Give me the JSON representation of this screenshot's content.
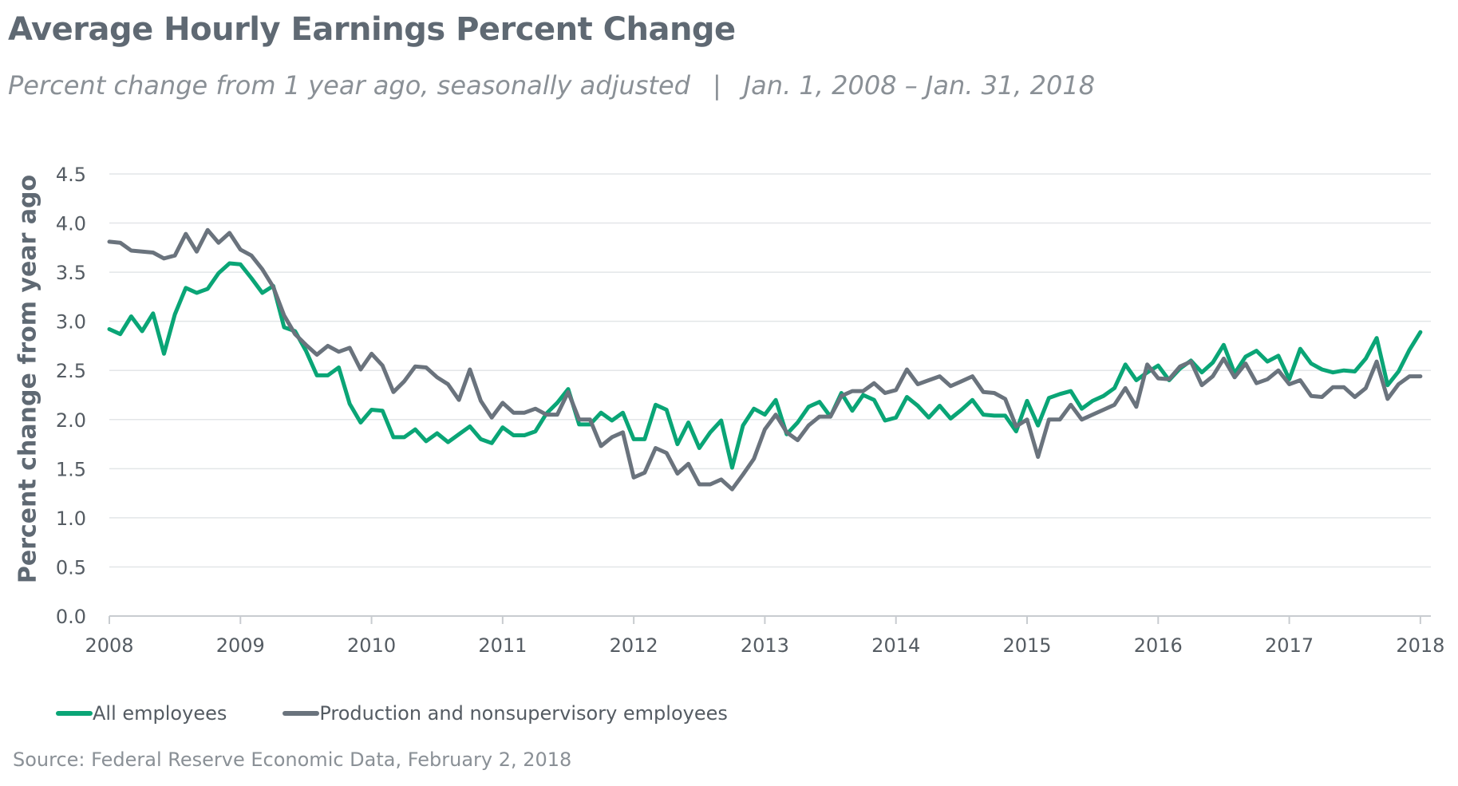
{
  "header": {
    "title": "Average Hourly Earnings Percent Change",
    "subtitle_left": "Percent change from 1 year ago, seasonally adjusted",
    "subtitle_sep": "|",
    "subtitle_right": "Jan. 1, 2008 – Jan. 31, 2018"
  },
  "legend": {
    "items": [
      "All employees",
      "Production and nonsupervisory employees"
    ]
  },
  "footer": {
    "source": "Source: Federal Reserve Economic Data, February 2, 2018"
  },
  "colors": {
    "all": "#0aa576",
    "prod": "#6a737d",
    "grid": "#e3e6e8",
    "axis": "#c8ccd0",
    "text": "#555c63"
  },
  "chart_data": {
    "type": "line",
    "title": "Average Hourly Earnings Percent Change",
    "ylabel": "Percent change from year ago",
    "xlabel": "",
    "ylim": [
      0,
      4.5
    ],
    "xlim": [
      2008,
      2018.08
    ],
    "x_start": 2008,
    "x_step_months": 1,
    "x_ticks": [
      "2008",
      "2009",
      "2010",
      "2011",
      "2012",
      "2013",
      "2014",
      "2015",
      "2016",
      "2017",
      "2018"
    ],
    "y_ticks": [
      "0.0",
      "0.5",
      "1.0",
      "1.5",
      "2.0",
      "2.5",
      "3.0",
      "3.5",
      "4.0",
      "4.5"
    ],
    "grid": true,
    "legend_position": "bottom-left",
    "series": [
      {
        "name": "All employees",
        "key": "all",
        "values": [
          2.92,
          2.87,
          3.05,
          2.9,
          3.08,
          2.67,
          3.07,
          3.34,
          3.29,
          3.33,
          3.49,
          3.59,
          3.58,
          3.44,
          3.29,
          3.36,
          2.94,
          2.9,
          2.7,
          2.45,
          2.45,
          2.53,
          2.16,
          1.97,
          2.1,
          2.09,
          1.82,
          1.82,
          1.9,
          1.78,
          1.86,
          1.77,
          1.85,
          1.93,
          1.8,
          1.76,
          1.92,
          1.84,
          1.84,
          1.88,
          2.06,
          2.17,
          2.31,
          1.95,
          1.95,
          2.07,
          1.99,
          2.07,
          1.8,
          1.8,
          2.15,
          2.1,
          1.75,
          1.97,
          1.71,
          1.87,
          1.99,
          1.51,
          1.94,
          2.11,
          2.05,
          2.2,
          1.85,
          1.97,
          2.13,
          2.18,
          2.03,
          2.27,
          2.09,
          2.25,
          2.2,
          1.99,
          2.02,
          2.23,
          2.14,
          2.02,
          2.14,
          2.01,
          2.1,
          2.2,
          2.05,
          2.04,
          2.04,
          1.88,
          2.19,
          1.94,
          2.22,
          2.26,
          2.29,
          2.11,
          2.19,
          2.24,
          2.32,
          2.56,
          2.4,
          2.48,
          2.55,
          2.4,
          2.52,
          2.6,
          2.48,
          2.58,
          2.76,
          2.47,
          2.64,
          2.7,
          2.59,
          2.65,
          2.41,
          2.72,
          2.57,
          2.51,
          2.48,
          2.5,
          2.49,
          2.62,
          2.83,
          2.35,
          2.49,
          2.71,
          2.89
        ]
      },
      {
        "name": "Production and nonsupervisory employees",
        "key": "prod",
        "values": [
          3.81,
          3.8,
          3.72,
          3.71,
          3.7,
          3.64,
          3.67,
          3.89,
          3.71,
          3.93,
          3.8,
          3.9,
          3.73,
          3.67,
          3.53,
          3.35,
          3.06,
          2.87,
          2.76,
          2.66,
          2.75,
          2.69,
          2.73,
          2.51,
          2.67,
          2.55,
          2.28,
          2.39,
          2.54,
          2.53,
          2.43,
          2.36,
          2.2,
          2.51,
          2.19,
          2.02,
          2.17,
          2.07,
          2.07,
          2.11,
          2.05,
          2.05,
          2.28,
          2.0,
          2.0,
          1.73,
          1.82,
          1.87,
          1.41,
          1.46,
          1.71,
          1.66,
          1.45,
          1.55,
          1.34,
          1.34,
          1.39,
          1.29,
          1.44,
          1.6,
          1.9,
          2.05,
          1.87,
          1.79,
          1.94,
          2.03,
          2.03,
          2.24,
          2.29,
          2.29,
          2.37,
          2.27,
          2.3,
          2.51,
          2.36,
          2.4,
          2.44,
          2.34,
          2.39,
          2.44,
          2.28,
          2.27,
          2.21,
          1.93,
          2.0,
          1.62,
          2.0,
          2.0,
          2.15,
          2.0,
          2.05,
          2.1,
          2.15,
          2.32,
          2.13,
          2.56,
          2.42,
          2.41,
          2.54,
          2.59,
          2.35,
          2.44,
          2.62,
          2.43,
          2.57,
          2.37,
          2.41,
          2.5,
          2.36,
          2.4,
          2.24,
          2.23,
          2.33,
          2.33,
          2.23,
          2.32,
          2.59,
          2.21,
          2.36,
          2.44,
          2.44
        ]
      }
    ]
  }
}
